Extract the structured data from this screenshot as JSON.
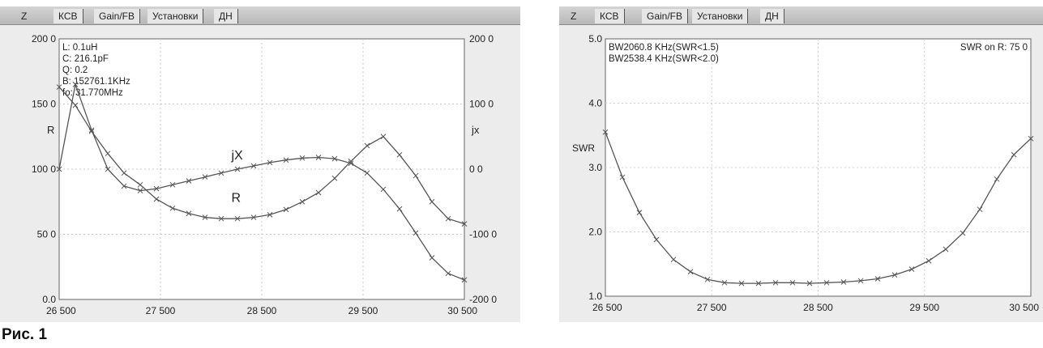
{
  "caption": "Рис. 1",
  "left_window": {
    "tabs": [
      "Z",
      "КСВ",
      "Gain/FB",
      "Установки",
      "ДН"
    ]
  },
  "right_window": {
    "tabs": [
      "Z",
      "КСВ",
      "Gain/FB",
      "Установки",
      "ДН"
    ]
  },
  "chart_data": [
    {
      "type": "line",
      "y_left_label": "R",
      "y_right_label": "jx",
      "x_ticks": [
        "26 500",
        "27 500",
        "28 500",
        "29 500",
        "30 500"
      ],
      "x_tick_values": [
        26.5,
        27.5,
        28.5,
        29.5,
        30.5
      ],
      "y_left_ticks": [
        "0.0",
        "50 0",
        "100 0",
        "150 0",
        "200 0"
      ],
      "y_left_tick_values": [
        0,
        50,
        100,
        150,
        200
      ],
      "y_right_ticks": [
        "-200 0",
        "-100 0",
        "0 0",
        "100 0",
        "200 0"
      ],
      "y_right_tick_values": [
        -200,
        -100,
        0,
        100,
        200
      ],
      "ylim_left": [
        0,
        200
      ],
      "ylim_right": [
        -200,
        200
      ],
      "xlim": [
        26.5,
        30.5
      ],
      "info_lines": [
        "L: 0.1uH",
        "C: 216.1pF",
        "Q: 0.2",
        "B: 152761.1KHz",
        "fo: 31.770MHz"
      ],
      "series": [
        {
          "name": "R",
          "axis": "left",
          "color": "#555555",
          "x": [
            26.5,
            26.66,
            26.82,
            26.98,
            27.14,
            27.3,
            27.46,
            27.62,
            27.78,
            27.94,
            28.1,
            28.26,
            28.42,
            28.58,
            28.74,
            28.9,
            29.06,
            29.22,
            29.38,
            29.54,
            29.7,
            29.86,
            30.02,
            30.18,
            30.34,
            30.5
          ],
          "y": [
            163,
            149,
            129,
            112,
            97,
            88,
            77,
            70,
            66,
            63,
            62,
            62,
            63,
            65,
            69,
            75,
            82,
            93,
            106,
            118,
            125,
            111,
            95,
            75,
            62,
            58
          ]
        },
        {
          "name": "jX",
          "axis": "right",
          "color": "#555555",
          "x": [
            26.5,
            26.66,
            26.82,
            26.98,
            27.14,
            27.3,
            27.46,
            27.62,
            27.78,
            27.94,
            28.1,
            28.26,
            28.42,
            28.58,
            28.74,
            28.9,
            29.06,
            29.22,
            29.38,
            29.54,
            29.7,
            29.86,
            30.02,
            30.18,
            30.34,
            30.5
          ],
          "y": [
            0,
            130,
            60,
            0,
            -26,
            -33,
            -30,
            -24,
            -18,
            -12,
            -6,
            0,
            5,
            10,
            14,
            17,
            18,
            16,
            9,
            -6,
            -31,
            -61,
            -98,
            -136,
            -160,
            -170
          ]
        }
      ],
      "labels": [
        {
          "text": "jX",
          "x": 28.2,
          "y": 15,
          "axis": "right"
        },
        {
          "text": "R",
          "x": 28.2,
          "y": 75,
          "axis": "left"
        }
      ]
    },
    {
      "type": "line",
      "y_label": "SWR",
      "x_ticks": [
        "26 500",
        "27 500",
        "28 500",
        "29 500",
        "30 500"
      ],
      "x_tick_values": [
        26.5,
        27.5,
        28.5,
        29.5,
        30.5
      ],
      "y_ticks": [
        "1.0",
        "2.0",
        "3.0",
        "4.0",
        "5.0"
      ],
      "y_tick_values": [
        1,
        2,
        3,
        4,
        5
      ],
      "ylim": [
        1,
        5
      ],
      "xlim": [
        26.5,
        30.5
      ],
      "info_lines": [
        "BW2060.8 KHz(SWR<1.5)",
        "BW2538.4 KHz(SWR<2.0)"
      ],
      "right_info": "SWR on R: 75 0",
      "series": [
        {
          "name": "SWR",
          "color": "#555555",
          "x": [
            26.5,
            26.66,
            26.82,
            26.98,
            27.14,
            27.3,
            27.46,
            27.62,
            27.78,
            27.94,
            28.1,
            28.26,
            28.42,
            28.58,
            28.74,
            28.9,
            29.06,
            29.22,
            29.38,
            29.54,
            29.7,
            29.86,
            30.02,
            30.18,
            30.34,
            30.5
          ],
          "y": [
            3.55,
            2.85,
            2.3,
            1.88,
            1.57,
            1.38,
            1.26,
            1.21,
            1.2,
            1.2,
            1.21,
            1.21,
            1.2,
            1.21,
            1.22,
            1.24,
            1.27,
            1.33,
            1.42,
            1.55,
            1.73,
            1.98,
            2.35,
            2.82,
            3.2,
            3.45
          ]
        }
      ]
    }
  ]
}
